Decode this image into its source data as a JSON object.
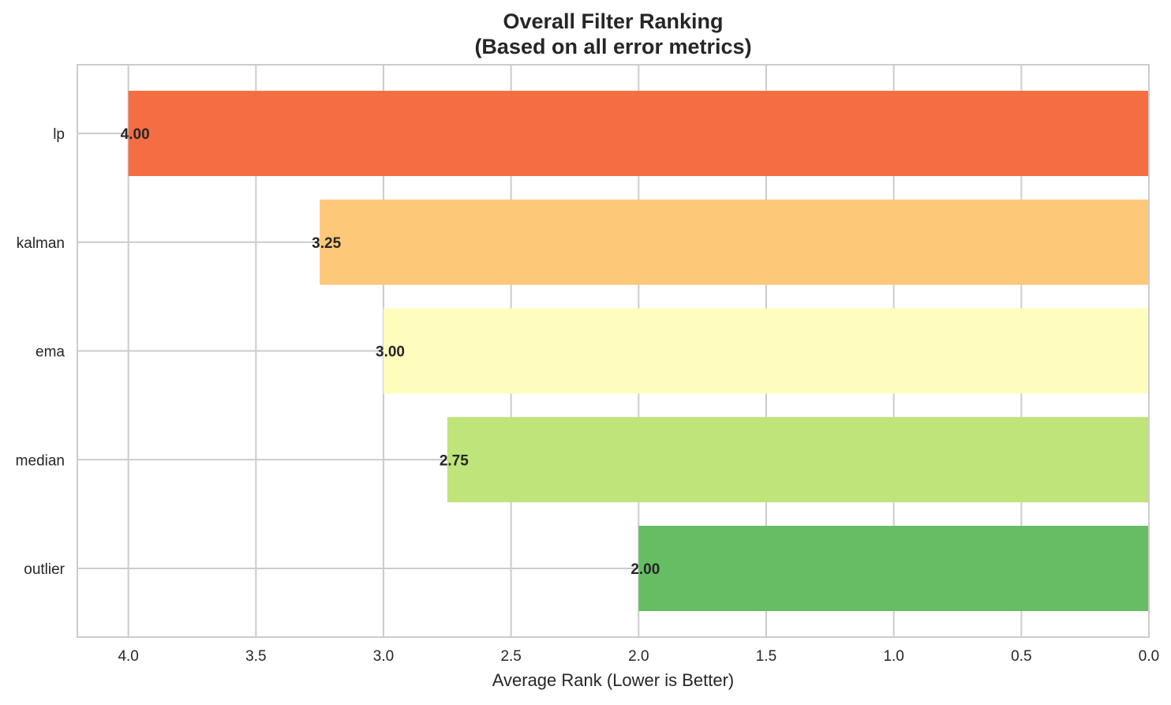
{
  "chart_data": {
    "type": "bar",
    "orientation": "horizontal",
    "title": "Overall Filter Ranking",
    "subtitle": "(Based on all error metrics)",
    "xlabel": "Average Rank (Lower is Better)",
    "ylabel": "",
    "categories": [
      "lp",
      "kalman",
      "ema",
      "median",
      "outlier"
    ],
    "values": [
      4.0,
      3.25,
      3.0,
      2.75,
      2.0
    ],
    "value_labels": [
      "4.00",
      "3.25",
      "3.00",
      "2.75",
      "2.00"
    ],
    "colors": [
      "#f46d43",
      "#fdc877",
      "#fefdbd",
      "#bfe47a",
      "#66bd63"
    ],
    "xlim": [
      4.2,
      0.0
    ],
    "x_inverted": true,
    "x_ticks": [
      4.0,
      3.5,
      3.0,
      2.5,
      2.0,
      1.5,
      1.0,
      0.5,
      0.0
    ],
    "x_tick_labels": [
      "4.0",
      "3.5",
      "3.0",
      "2.5",
      "2.0",
      "1.5",
      "1.0",
      "0.5",
      "0.0"
    ],
    "grid": true,
    "legend": "none"
  }
}
